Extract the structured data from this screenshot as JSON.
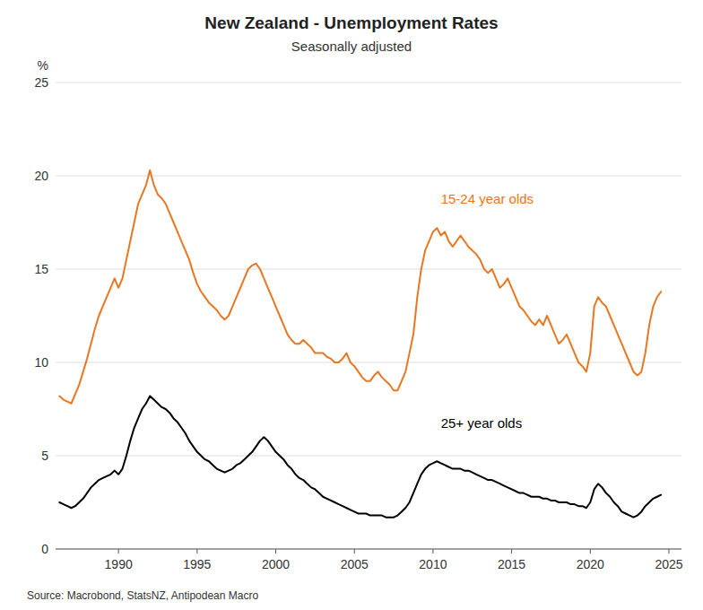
{
  "chart_data": {
    "type": "line",
    "title": "New Zealand - Unemployment Rates",
    "subtitle": "Seasonally adjusted",
    "ylabel": "%",
    "source": "Source: Macrobond, StatsNZ, Antipodean Macro",
    "xlim": [
      1986.0,
      2025.8
    ],
    "xticks": [
      1990,
      1995,
      2000,
      2005,
      2010,
      2015,
      2020,
      2025
    ],
    "ylim": [
      0,
      25
    ],
    "yticks": [
      0,
      5,
      10,
      15,
      20,
      25
    ],
    "grid": true,
    "x": [
      1986.25,
      1986.5,
      1986.75,
      1987.0,
      1987.25,
      1987.5,
      1987.75,
      1988.0,
      1988.25,
      1988.5,
      1988.75,
      1989.0,
      1989.25,
      1989.5,
      1989.75,
      1990.0,
      1990.25,
      1990.5,
      1990.75,
      1991.0,
      1991.25,
      1991.5,
      1991.75,
      1992.0,
      1992.25,
      1992.5,
      1992.75,
      1993.0,
      1993.25,
      1993.5,
      1993.75,
      1994.0,
      1994.25,
      1994.5,
      1994.75,
      1995.0,
      1995.25,
      1995.5,
      1995.75,
      1996.0,
      1996.25,
      1996.5,
      1996.75,
      1997.0,
      1997.25,
      1997.5,
      1997.75,
      1998.0,
      1998.25,
      1998.5,
      1998.75,
      1999.0,
      1999.25,
      1999.5,
      1999.75,
      2000.0,
      2000.25,
      2000.5,
      2000.75,
      2001.0,
      2001.25,
      2001.5,
      2001.75,
      2002.0,
      2002.25,
      2002.5,
      2002.75,
      2003.0,
      2003.25,
      2003.5,
      2003.75,
      2004.0,
      2004.25,
      2004.5,
      2004.75,
      2005.0,
      2005.25,
      2005.5,
      2005.75,
      2006.0,
      2006.25,
      2006.5,
      2006.75,
      2007.0,
      2007.25,
      2007.5,
      2007.75,
      2008.0,
      2008.25,
      2008.5,
      2008.75,
      2009.0,
      2009.25,
      2009.5,
      2009.75,
      2010.0,
      2010.25,
      2010.5,
      2010.75,
      2011.0,
      2011.25,
      2011.5,
      2011.75,
      2012.0,
      2012.25,
      2012.5,
      2012.75,
      2013.0,
      2013.25,
      2013.5,
      2013.75,
      2014.0,
      2014.25,
      2014.5,
      2014.75,
      2015.0,
      2015.25,
      2015.5,
      2015.75,
      2016.0,
      2016.25,
      2016.5,
      2016.75,
      2017.0,
      2017.25,
      2017.5,
      2017.75,
      2018.0,
      2018.25,
      2018.5,
      2018.75,
      2019.0,
      2019.25,
      2019.5,
      2019.75,
      2020.0,
      2020.25,
      2020.5,
      2020.75,
      2021.0,
      2021.25,
      2021.5,
      2021.75,
      2022.0,
      2022.25,
      2022.5,
      2022.75,
      2023.0,
      2023.25,
      2023.5,
      2023.75,
      2024.0,
      2024.25,
      2024.5
    ],
    "series": [
      {
        "color": "#E87722",
        "values": [
          8.2,
          8.0,
          7.9,
          7.8,
          8.3,
          8.8,
          9.5,
          10.2,
          11.0,
          11.8,
          12.5,
          13.0,
          13.5,
          14.0,
          14.5,
          14.0,
          14.5,
          15.5,
          16.5,
          17.5,
          18.5,
          19.0,
          19.5,
          20.3,
          19.5,
          19.0,
          18.8,
          18.5,
          18.0,
          17.5,
          17.0,
          16.5,
          16.0,
          15.5,
          14.8,
          14.2,
          13.8,
          13.5,
          13.2,
          13.0,
          12.8,
          12.5,
          12.3,
          12.5,
          13.0,
          13.5,
          14.0,
          14.5,
          15.0,
          15.2,
          15.3,
          15.0,
          14.5,
          14.0,
          13.5,
          13.0,
          12.5,
          12.0,
          11.5,
          11.2,
          11.0,
          11.0,
          11.2,
          11.0,
          10.8,
          10.5,
          10.5,
          10.5,
          10.3,
          10.2,
          10.0,
          10.0,
          10.2,
          10.5,
          10.0,
          9.8,
          9.5,
          9.2,
          9.0,
          9.0,
          9.3,
          9.5,
          9.2,
          9.0,
          8.8,
          8.5,
          8.5,
          9.0,
          9.5,
          10.5,
          11.5,
          13.5,
          15.0,
          16.0,
          16.5,
          17.0,
          17.2,
          16.8,
          17.0,
          16.5,
          16.2,
          16.5,
          16.8,
          16.5,
          16.2,
          16.0,
          15.8,
          15.5,
          15.0,
          14.8,
          15.0,
          14.5,
          14.0,
          14.2,
          14.5,
          14.0,
          13.5,
          13.0,
          12.8,
          12.5,
          12.2,
          12.0,
          12.3,
          12.0,
          12.5,
          12.0,
          11.5,
          11.0,
          11.2,
          11.5,
          11.0,
          10.5,
          10.0,
          9.8,
          9.5,
          10.5,
          13.0,
          13.5,
          13.2,
          13.0,
          12.5,
          12.0,
          11.5,
          11.0,
          10.5,
          10.0,
          9.5,
          9.3,
          9.5,
          10.5,
          12.0,
          13.0,
          13.5,
          13.8
        ]
      },
      {
        "color": "#000000",
        "values": [
          2.5,
          2.4,
          2.3,
          2.2,
          2.3,
          2.5,
          2.7,
          3.0,
          3.3,
          3.5,
          3.7,
          3.8,
          3.9,
          4.0,
          4.2,
          4.0,
          4.3,
          5.0,
          5.8,
          6.5,
          7.0,
          7.5,
          7.8,
          8.2,
          8.0,
          7.8,
          7.6,
          7.5,
          7.3,
          7.0,
          6.8,
          6.5,
          6.2,
          5.8,
          5.5,
          5.2,
          5.0,
          4.8,
          4.7,
          4.5,
          4.3,
          4.2,
          4.1,
          4.2,
          4.3,
          4.5,
          4.6,
          4.8,
          5.0,
          5.2,
          5.5,
          5.8,
          6.0,
          5.8,
          5.5,
          5.2,
          5.0,
          4.8,
          4.5,
          4.3,
          4.0,
          3.8,
          3.7,
          3.5,
          3.3,
          3.2,
          3.0,
          2.8,
          2.7,
          2.6,
          2.5,
          2.4,
          2.3,
          2.2,
          2.1,
          2.0,
          1.9,
          1.9,
          1.9,
          1.8,
          1.8,
          1.8,
          1.8,
          1.7,
          1.7,
          1.7,
          1.8,
          2.0,
          2.2,
          2.5,
          3.0,
          3.5,
          4.0,
          4.3,
          4.5,
          4.6,
          4.7,
          4.6,
          4.5,
          4.4,
          4.3,
          4.3,
          4.3,
          4.2,
          4.2,
          4.1,
          4.0,
          3.9,
          3.8,
          3.7,
          3.7,
          3.6,
          3.5,
          3.4,
          3.3,
          3.2,
          3.1,
          3.0,
          3.0,
          2.9,
          2.8,
          2.8,
          2.8,
          2.7,
          2.7,
          2.6,
          2.6,
          2.5,
          2.5,
          2.5,
          2.4,
          2.4,
          2.3,
          2.3,
          2.2,
          2.5,
          3.2,
          3.5,
          3.3,
          3.0,
          2.8,
          2.5,
          2.3,
          2.0,
          1.9,
          1.8,
          1.7,
          1.8,
          2.0,
          2.3,
          2.5,
          2.7,
          2.8,
          2.9
        ]
      }
    ],
    "annotations": [
      {
        "text": "15-24 year olds",
        "x": 2010.5,
        "y": 18.5,
        "color": "#E87722"
      },
      {
        "text": "25+ year olds",
        "x": 2010.5,
        "y": 6.5,
        "color": "#000000"
      }
    ]
  }
}
